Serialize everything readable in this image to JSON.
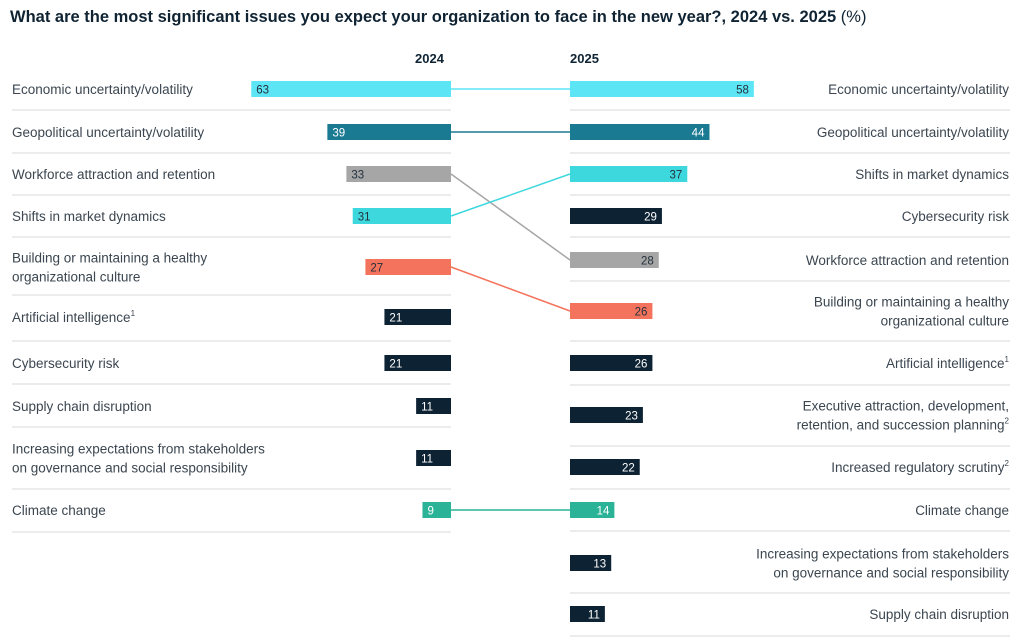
{
  "title": "What are the most significant issues you expect your organization to face in the new year?, 2024 vs. 2025",
  "title_unit": "(%)",
  "chart_data": {
    "type": "bar",
    "title": "What are the most significant issues you expect your organization to face in the new year?, 2024 vs. 2025 (%)",
    "unit": "%",
    "colors": {
      "aqua": "#5ce6f5",
      "teal_dark": "#1a7a92",
      "gray": "#a6a6a6",
      "turquoise": "#3dd8de",
      "coral": "#f4735c",
      "navy": "#0d2233",
      "green": "#2ab397",
      "label_light": "#24313c",
      "label_dark": "#ffffff"
    },
    "series": [
      {
        "name": "2024",
        "items": [
          {
            "label": "Economic uncertainty/volatility",
            "value": 63,
            "color": "aqua"
          },
          {
            "label": "Geopolitical uncertainty/volatility",
            "value": 39,
            "color": "teal_dark"
          },
          {
            "label": "Workforce attraction and retention",
            "value": 33,
            "color": "gray"
          },
          {
            "label": "Shifts in market dynamics",
            "value": 31,
            "color": "turquoise"
          },
          {
            "label": "Building or maintaining a healthy organizational culture",
            "lines": [
              "Building or maintaining a healthy",
              "organizational culture"
            ],
            "value": 27,
            "color": "coral"
          },
          {
            "label": "Artificial intelligence",
            "sup": "1",
            "value": 21,
            "color": "navy"
          },
          {
            "label": "Cybersecurity risk",
            "value": 21,
            "color": "navy"
          },
          {
            "label": "Supply chain disruption",
            "value": 11,
            "color": "navy"
          },
          {
            "label": "Increasing expectations from stakeholders on governance and social responsibility",
            "lines": [
              "Increasing expectations from stakeholders",
              "on governance and social responsibility"
            ],
            "value": 11,
            "color": "navy"
          },
          {
            "label": "Climate change",
            "value": 9,
            "color": "green"
          }
        ]
      },
      {
        "name": "2025",
        "items": [
          {
            "label": "Economic uncertainty/volatility",
            "value": 58,
            "color": "aqua"
          },
          {
            "label": "Geopolitical uncertainty/volatility",
            "value": 44,
            "color": "teal_dark"
          },
          {
            "label": "Shifts in market dynamics",
            "value": 37,
            "color": "turquoise"
          },
          {
            "label": "Cybersecurity risk",
            "value": 29,
            "color": "navy"
          },
          {
            "label": "Workforce attraction and retention",
            "value": 28,
            "color": "gray"
          },
          {
            "label": "Building or maintaining a healthy organizational culture",
            "lines": [
              "Building or maintaining a healthy",
              "organizational culture"
            ],
            "value": 26,
            "color": "coral"
          },
          {
            "label": "Artificial intelligence",
            "sup": "1",
            "value": 26,
            "color": "navy"
          },
          {
            "label": "Executive attraction, development, retention, and succession planning",
            "lines": [
              "Executive attraction, development,",
              "retention, and succession planning"
            ],
            "sup": "2",
            "value": 23,
            "color": "navy"
          },
          {
            "label": "Increased regulatory scrutiny",
            "sup": "2",
            "value": 22,
            "color": "navy"
          },
          {
            "label": "Climate change",
            "value": 14,
            "color": "green"
          },
          {
            "label": "Increasing expectations from stakeholders on governance and social responsibility",
            "lines": [
              "Increasing expectations from stakeholders",
              "on governance and social responsibility"
            ],
            "value": 13,
            "color": "navy"
          },
          {
            "label": "Supply chain disruption",
            "value": 11,
            "color": "navy"
          }
        ]
      }
    ],
    "connectors": [
      {
        "label": "Economic uncertainty/volatility",
        "from_rank": 1,
        "to_rank": 1,
        "color": "aqua"
      },
      {
        "label": "Geopolitical uncertainty/volatility",
        "from_rank": 2,
        "to_rank": 2,
        "color": "teal_dark"
      },
      {
        "label": "Workforce attraction and retention",
        "from_rank": 3,
        "to_rank": 5,
        "color": "gray"
      },
      {
        "label": "Shifts in market dynamics",
        "from_rank": 4,
        "to_rank": 3,
        "color": "turquoise"
      },
      {
        "label": "Building or maintaining a healthy organizational culture",
        "from_rank": 5,
        "to_rank": 6,
        "color": "coral"
      },
      {
        "label": "Climate change",
        "from_rank": 10,
        "to_rank": 10,
        "color": "green"
      }
    ]
  }
}
